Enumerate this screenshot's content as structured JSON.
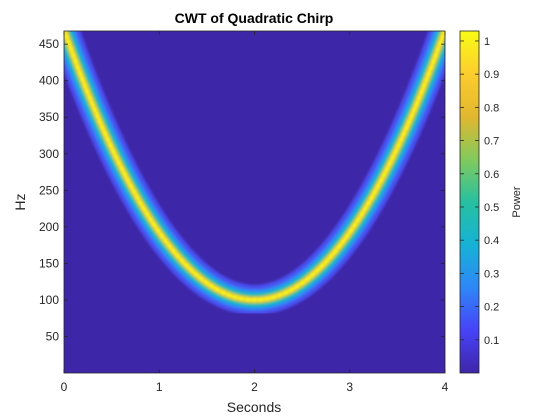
{
  "chart_data": {
    "type": "heatmap",
    "title": "CWT of Quadratic Chirp",
    "xlabel": "Seconds",
    "ylabel": "Hz",
    "xlim": [
      0,
      4
    ],
    "ylim": [
      0,
      468
    ],
    "x_ticks": [
      0,
      1,
      2,
      3,
      4
    ],
    "y_ticks": [
      50,
      100,
      150,
      200,
      250,
      300,
      350,
      400,
      450
    ],
    "ridge": {
      "description_type": "quadratic",
      "vertex_time": 2.0,
      "vertex_frequency": 100,
      "frequency_at_t0": 470,
      "frequency_at_t4": 470,
      "peak_power": 1.0,
      "background_power": 0.02
    },
    "colorbar": {
      "label": "Power",
      "range": [
        0,
        1.03
      ],
      "ticks": [
        0.1,
        0.2,
        0.3,
        0.4,
        0.5,
        0.6,
        0.7,
        0.8,
        0.9,
        1
      ],
      "colormap": "parula",
      "colormap_stops": [
        "#3e26a8",
        "#4743f8",
        "#2e87f7",
        "#16b2d5",
        "#27c0a0",
        "#82ca5c",
        "#e2b72f",
        "#fccd2e",
        "#f9fb15"
      ]
    }
  }
}
